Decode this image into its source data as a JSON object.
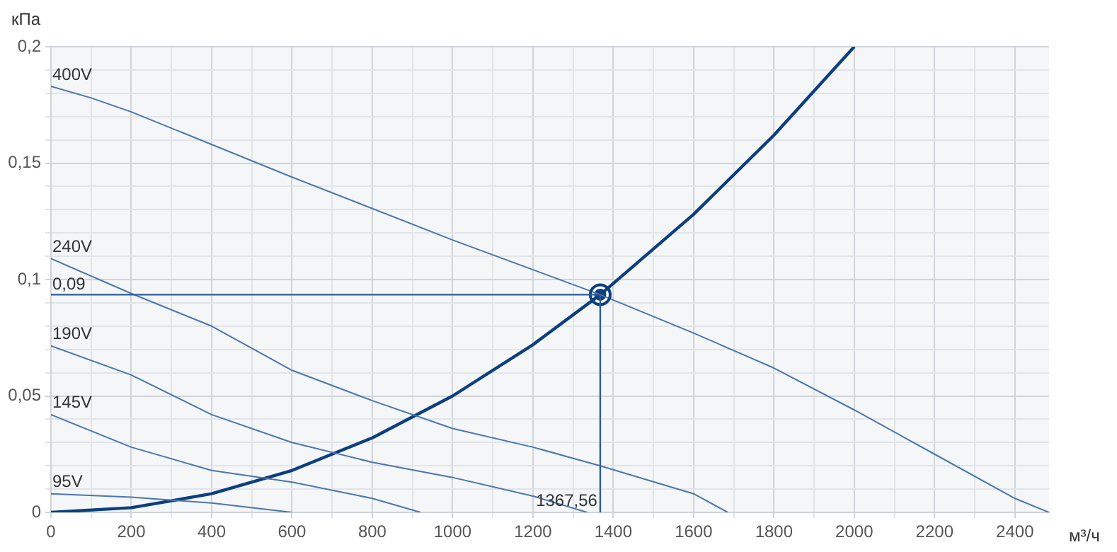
{
  "chart_data": {
    "type": "line",
    "xlabel": "м³/ч",
    "ylabel": "кПа",
    "xlim": [
      0,
      2485
    ],
    "ylim": [
      0,
      0.2
    ],
    "xticks": [
      0,
      {
        "value": 100,
        "label": null
      },
      200,
      {
        "value": 300,
        "label": null
      },
      400,
      {
        "value": 500,
        "label": null
      },
      600,
      {
        "value": 700,
        "label": null
      },
      800,
      {
        "value": 900,
        "label": null
      },
      1000,
      {
        "value": 1100,
        "label": null
      },
      1200,
      {
        "value": 1300,
        "label": null
      },
      1400,
      {
        "value": 1500,
        "label": null
      },
      1600,
      {
        "value": 1700,
        "label": null
      },
      1800,
      {
        "value": 1900,
        "label": null
      },
      2000,
      {
        "value": 2100,
        "label": null
      },
      2200,
      {
        "value": 2300,
        "label": null
      },
      2400
    ],
    "yticks": [
      {
        "value": 0,
        "label": "0"
      },
      {
        "value": 0.01,
        "label": null
      },
      {
        "value": 0.02,
        "label": null
      },
      {
        "value": 0.03,
        "label": null
      },
      {
        "value": 0.04,
        "label": null
      },
      {
        "value": 0.05,
        "label": "0,05"
      },
      {
        "value": 0.06,
        "label": null
      },
      {
        "value": 0.07,
        "label": null
      },
      {
        "value": 0.08,
        "label": null
      },
      {
        "value": 0.09,
        "label": null
      },
      {
        "value": 0.1,
        "label": "0,1"
      },
      {
        "value": 0.11,
        "label": null
      },
      {
        "value": 0.12,
        "label": null
      },
      {
        "value": 0.13,
        "label": null
      },
      {
        "value": 0.14,
        "label": null
      },
      {
        "value": 0.15,
        "label": "0,15"
      },
      {
        "value": 0.16,
        "label": null
      },
      {
        "value": 0.17,
        "label": null
      },
      {
        "value": 0.18,
        "label": null
      },
      {
        "value": 0.19,
        "label": null
      },
      {
        "value": 0.2,
        "label": "0,2"
      }
    ],
    "grid": true,
    "legend": false,
    "marker": "none",
    "line_style": "solid",
    "series": [
      {
        "name": "400V",
        "color": "#4a76ad",
        "x": [
          0,
          100,
          200,
          600,
          1000,
          1367.56,
          1600,
          1800,
          2000,
          2200,
          2400,
          2485
        ],
        "values": [
          0.183,
          0.178,
          0.172,
          0.144,
          0.117,
          0.0935,
          0.077,
          0.062,
          0.044,
          0.025,
          0.006,
          0
        ]
      },
      {
        "name": "240V",
        "color": "#4a76ad",
        "x": [
          0,
          200,
          400,
          600,
          800,
          1000,
          1200,
          1367.56,
          1600,
          1685
        ],
        "values": [
          0.109,
          0.094,
          0.08,
          0.061,
          0.048,
          0.036,
          0.028,
          0.02,
          0.008,
          0
        ]
      },
      {
        "name": "190V",
        "color": "#4a76ad",
        "x": [
          0,
          200,
          400,
          600,
          800,
          1000,
          1200,
          1335
        ],
        "values": [
          0.0715,
          0.059,
          0.042,
          0.03,
          0.0215,
          0.015,
          0.007,
          0
        ]
      },
      {
        "name": "145V",
        "color": "#4a76ad",
        "x": [
          0,
          200,
          400,
          600,
          800,
          920
        ],
        "values": [
          0.042,
          0.028,
          0.018,
          0.013,
          0.006,
          0
        ]
      },
      {
        "name": "95V",
        "color": "#4a76ad",
        "x": [
          0,
          200,
          400,
          600
        ],
        "values": [
          0.008,
          0.0065,
          0.004,
          0
        ]
      },
      {
        "color": "#0d3f7f",
        "x": [
          0,
          200,
          400,
          600,
          800,
          1000,
          1200,
          1367.56,
          1600,
          1800,
          2000
        ],
        "values": [
          0,
          0.002,
          0.008,
          0.018,
          0.032,
          0.05,
          0.072,
          0.0935,
          0.128,
          0.162,
          0.2
        ]
      },
      {
        "type": "scatter",
        "marker": "circle",
        "color": "#0d3f7f",
        "x": [
          1367.56
        ],
        "values": [
          0.0935
        ]
      }
    ],
    "ref_lines": [
      {
        "axis": "y",
        "value": 0.0935,
        "label": "0,09",
        "color": "#2b5c97"
      },
      {
        "axis": "x",
        "value": 1367.56,
        "label": "1367,56",
        "color": "#2b5c97"
      }
    ]
  }
}
